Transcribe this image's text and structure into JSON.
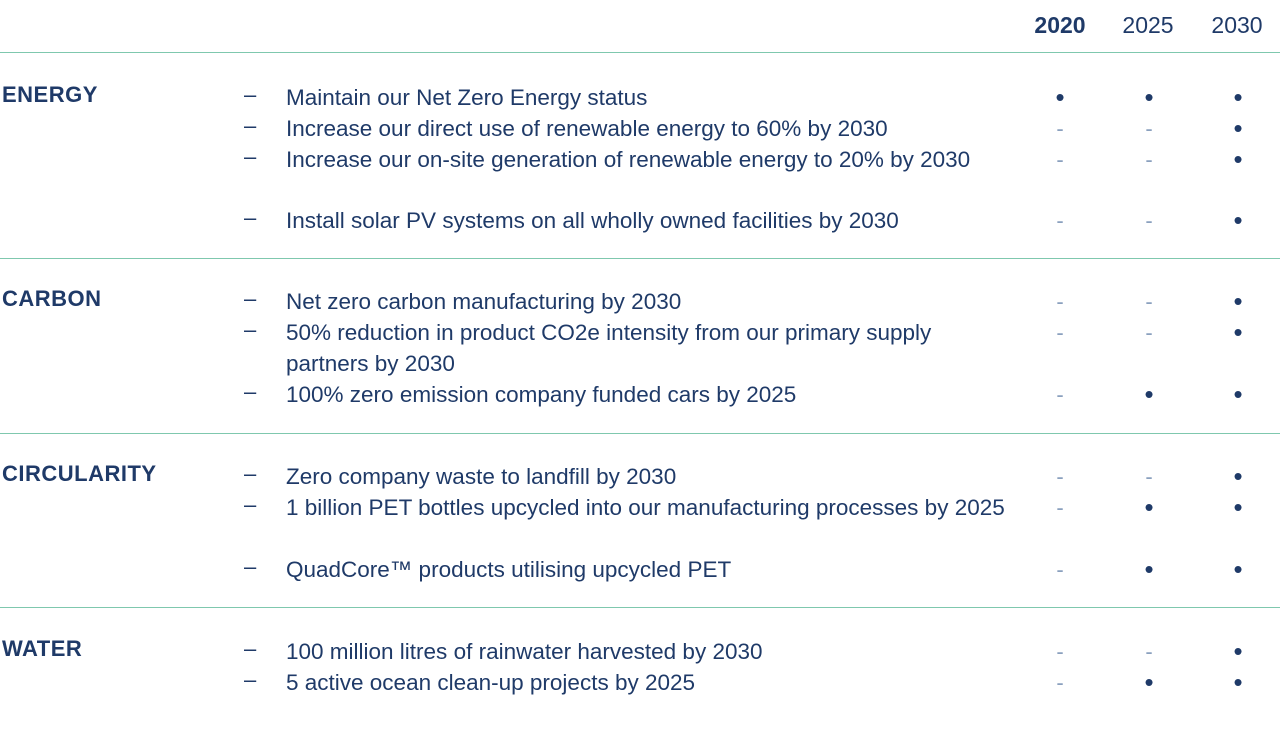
{
  "years": [
    "2020",
    "2025",
    "2030"
  ],
  "sections": [
    {
      "category": "ENERGY",
      "goals": [
        {
          "text": "Maintain our Net Zero Energy status",
          "marks": [
            "•",
            "•",
            "•"
          ]
        },
        {
          "text": "Increase our direct use of renewable energy to 60% by 2030",
          "marks": [
            "-",
            "-",
            "•"
          ]
        },
        {
          "text": "Increase our on-site generation of renewable energy to 20% by 2030",
          "marks": [
            "-",
            "-",
            "•"
          ]
        },
        {
          "text": "Install solar PV systems on all wholly owned facilities by 2030",
          "marks": [
            "-",
            "-",
            "•"
          ]
        }
      ]
    },
    {
      "category": "CARBON",
      "goals": [
        {
          "text": "Net zero carbon manufacturing by 2030",
          "marks": [
            "-",
            "-",
            "•"
          ]
        },
        {
          "text": "50% reduction in product CO2e intensity from our primary supply partners by 2030",
          "marks": [
            "-",
            "-",
            "•"
          ]
        },
        {
          "text": "100% zero emission company funded cars by 2025",
          "marks": [
            "-",
            "•",
            "•"
          ]
        }
      ]
    },
    {
      "category": "CIRCULARITY",
      "goals": [
        {
          "text": "Zero company waste to landfill by 2030",
          "marks": [
            "-",
            "-",
            "•"
          ]
        },
        {
          "text": "1 billion PET bottles upcycled into our manufacturing processes by 2025",
          "marks": [
            "-",
            "•",
            "•"
          ]
        },
        {
          "text": "QuadCore™ products utilising upcycled PET",
          "marks": [
            "-",
            "•",
            "•"
          ]
        }
      ]
    },
    {
      "category": "WATER",
      "goals": [
        {
          "text": "100 million litres of rainwater harvested by 2030",
          "marks": [
            "-",
            "-",
            "•"
          ]
        },
        {
          "text": "5 active ocean clean-up projects by 2025",
          "marks": [
            "-",
            "•",
            "•"
          ]
        }
      ]
    }
  ],
  "bullet_dash": "–"
}
